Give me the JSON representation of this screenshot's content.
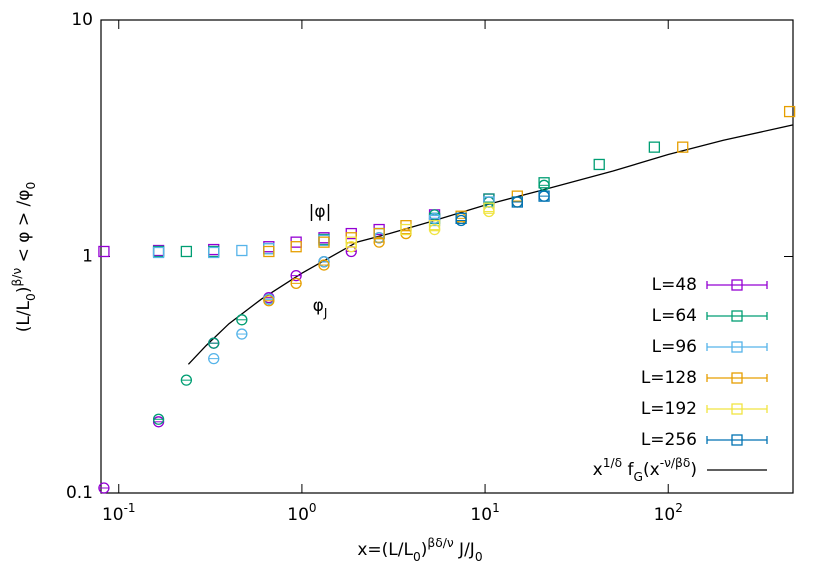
{
  "chart_data": {
    "type": "scatter",
    "log_x": true,
    "log_y": true,
    "xlim": [
      0.08,
      480
    ],
    "ylim": [
      0.1,
      10
    ],
    "xticks": [
      {
        "value": 0.1,
        "label": "10",
        "exponent": "-1"
      },
      {
        "value": 1,
        "label": "10",
        "exponent": "0"
      },
      {
        "value": 10,
        "label": "10",
        "exponent": "1"
      },
      {
        "value": 100,
        "label": "10",
        "exponent": "2"
      }
    ],
    "yticks": [
      0.1,
      1,
      10
    ],
    "xlabel": [
      "x=(L/L",
      "0",
      ")",
      "βδ/ν",
      " J/J",
      "0"
    ],
    "xlabel_shift": [
      "",
      "sub",
      "",
      "sup",
      "",
      "sub"
    ],
    "ylabel": [
      "(L/L",
      "0",
      ")",
      "β/ν",
      " < φ > /φ",
      "0"
    ],
    "ylabel_shift": [
      "",
      "sub",
      "",
      "sup",
      "",
      "sub"
    ],
    "annotations": [
      {
        "text": "|φ|"
      },
      {
        "text": "φ",
        "sub": "J"
      }
    ],
    "legend": "lower right",
    "series": [
      {
        "name": "L=48",
        "color": "#9400d3",
        "x": [
          0.083,
          0.165,
          0.33,
          0.66,
          0.93,
          1.32,
          1.86,
          2.64,
          5.3,
          10.5
        ],
        "values": [
          1.05,
          1.06,
          1.07,
          1.1,
          1.15,
          1.2,
          1.25,
          1.3,
          1.5,
          1.75
        ],
        "x_j": [
          0.083,
          0.165,
          0.33,
          0.66,
          0.93,
          1.32,
          1.86,
          2.64,
          5.3,
          10.5
        ],
        "values_j": [
          0.105,
          0.2,
          0.43,
          0.67,
          0.83,
          0.95,
          1.05,
          1.2,
          1.45,
          1.7
        ]
      },
      {
        "name": "L=64",
        "color": "#009e73",
        "x": [
          0.165,
          0.234,
          0.33,
          0.66,
          1.32,
          2.64,
          5.3,
          10.5,
          21,
          42,
          84
        ],
        "values": [
          1.05,
          1.05,
          1.05,
          1.08,
          1.18,
          1.25,
          1.45,
          1.75,
          2.05,
          2.45,
          2.9
        ],
        "x_j": [
          0.165,
          0.234,
          0.33,
          0.47,
          0.66,
          1.32,
          2.64,
          5.3,
          10.5,
          21
        ],
        "values_j": [
          0.205,
          0.3,
          0.43,
          0.54,
          0.66,
          0.95,
          1.2,
          1.5,
          1.7,
          2.0
        ]
      },
      {
        "name": "L=96",
        "color": "#56b4e9",
        "x": [
          0.165,
          0.33,
          0.47,
          0.66,
          1.32,
          2.64,
          5.3,
          10.5
        ],
        "values": [
          1.04,
          1.04,
          1.06,
          1.08,
          1.17,
          1.25,
          1.42,
          1.7
        ],
        "x_j": [
          0.33,
          0.47,
          0.66,
          1.32,
          2.64,
          5.3
        ],
        "values_j": [
          0.37,
          0.47,
          0.66,
          0.95,
          1.2,
          1.45
        ]
      },
      {
        "name": "L=128",
        "color": "#e69f00",
        "x": [
          0.66,
          0.93,
          1.32,
          1.86,
          2.64,
          3.7,
          7.4,
          15,
          120,
          460
        ],
        "values": [
          1.05,
          1.1,
          1.15,
          1.2,
          1.25,
          1.35,
          1.48,
          1.8,
          2.9,
          4.1
        ],
        "x_j": [
          0.66,
          0.93,
          1.32,
          2.64,
          3.7,
          7.4,
          15
        ],
        "values_j": [
          0.65,
          0.77,
          0.92,
          1.15,
          1.25,
          1.45,
          1.7
        ]
      },
      {
        "name": "L=192",
        "color": "#f0e442",
        "x": [
          1.86,
          3.7,
          5.3,
          10.5
        ],
        "values": [
          1.15,
          1.3,
          1.35,
          1.6
        ],
        "x_j": [
          1.86,
          5.3,
          10.5
        ],
        "values_j": [
          1.1,
          1.3,
          1.55
        ]
      },
      {
        "name": "L=256",
        "color": "#0072b2",
        "x": [
          7.4,
          15,
          21
        ],
        "values": [
          1.45,
          1.7,
          1.8
        ],
        "x_j": [
          7.4,
          15,
          21
        ],
        "values_j": [
          1.42,
          1.7,
          1.8
        ]
      }
    ],
    "curve": {
      "name": [
        "x",
        "1/δ",
        " f",
        "G",
        "(x",
        "-ν/βδ",
        ")"
      ],
      "name_shift": [
        "",
        "sup",
        "",
        "sub",
        "",
        "sup",
        ""
      ],
      "color": "#000000",
      "x": [
        0.24,
        0.3,
        0.4,
        0.6,
        1,
        2,
        3,
        5,
        10,
        20,
        50,
        100,
        200,
        480
      ],
      "values": [
        0.35,
        0.42,
        0.52,
        0.66,
        0.85,
        1.15,
        1.25,
        1.4,
        1.65,
        1.9,
        2.3,
        2.7,
        3.1,
        3.6
      ]
    }
  }
}
